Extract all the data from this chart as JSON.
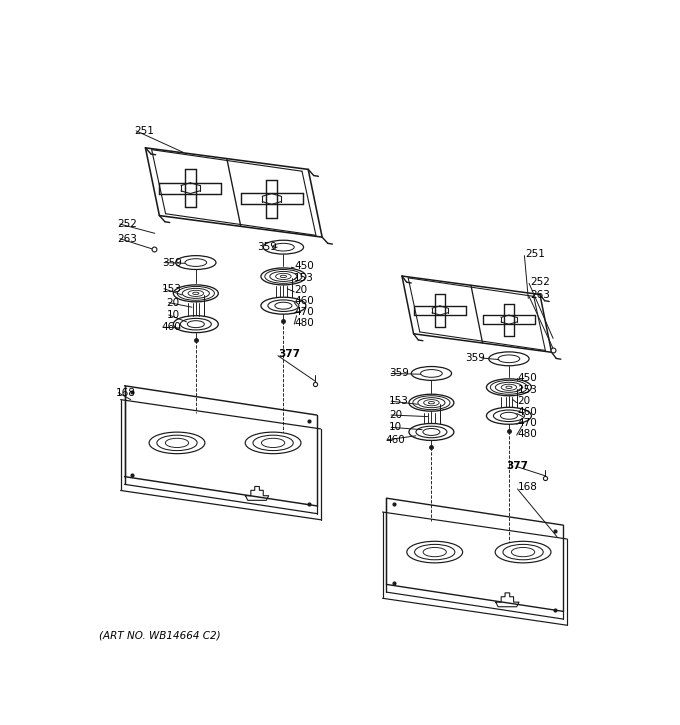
{
  "footer": "(ART NO. WB14664 C2)",
  "background": "#ffffff",
  "lc": "#1a1a1a",
  "tc": "#000000",
  "fig_width": 6.8,
  "fig_height": 7.25,
  "dpi": 100
}
